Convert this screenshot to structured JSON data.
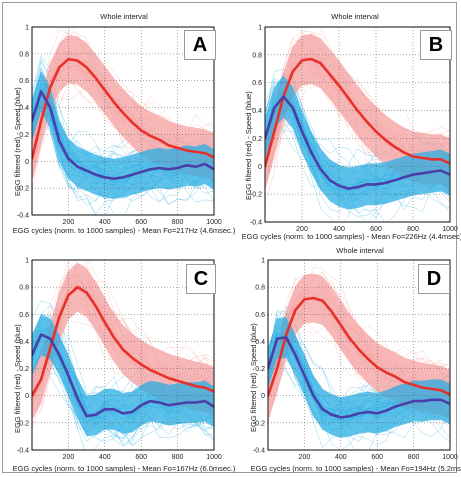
{
  "chart_data": [
    {
      "type": "line",
      "panel_label": "A",
      "title": "Whole interval",
      "xlabel": "EGG cycles (norm. to 1000 samples) - Mean Fo=217Hz (4.6msec.)",
      "ylabel": "EGG filtered (red) - Speed (blue)",
      "xlim": [
        0,
        1000
      ],
      "ylim": [
        -0.4,
        1
      ],
      "xticks": [
        "200",
        "400",
        "600",
        "800",
        "1000"
      ],
      "yticks": [
        "-0.4",
        "-0.2",
        "0",
        "0.2",
        "0.4",
        "0.6",
        "0.8",
        "1"
      ],
      "grid": true,
      "series": [
        {
          "color": "#e8302a",
          "x": [
            0,
            50,
            100,
            150,
            200,
            250,
            300,
            350,
            400,
            450,
            500,
            550,
            600,
            650,
            700,
            750,
            800,
            850,
            900,
            950,
            1000
          ],
          "values": [
            0.02,
            0.3,
            0.55,
            0.7,
            0.76,
            0.75,
            0.7,
            0.62,
            0.53,
            0.44,
            0.36,
            0.29,
            0.23,
            0.19,
            0.16,
            0.12,
            0.1,
            0.08,
            0.07,
            0.06,
            0.03
          ]
        },
        {
          "color": "#4a3fa8",
          "x": [
            0,
            50,
            100,
            150,
            200,
            250,
            300,
            350,
            400,
            450,
            500,
            550,
            600,
            650,
            700,
            750,
            800,
            850,
            900,
            950,
            1000
          ],
          "values": [
            0.3,
            0.52,
            0.4,
            0.15,
            0.02,
            -0.04,
            -0.07,
            -0.1,
            -0.12,
            -0.13,
            -0.12,
            -0.1,
            -0.08,
            -0.06,
            -0.05,
            -0.06,
            -0.05,
            -0.03,
            -0.04,
            -0.02,
            -0.06
          ]
        }
      ]
    },
    {
      "type": "line",
      "panel_label": "B",
      "title": "Whole interval",
      "xlabel": "EGG cycles (norm. to 1000 samples) - Mean Fo=226Hz (4.4msec)",
      "ylabel": "EGG filtered (red) - Speed (blue)",
      "xlim": [
        0,
        1000
      ],
      "ylim": [
        -0.4,
        1
      ],
      "xticks": [
        "200",
        "400",
        "600",
        "800",
        "1000"
      ],
      "yticks": [
        "-0.4",
        "-0.2",
        "0",
        "0.2",
        "0.4",
        "0.6",
        "0.8",
        "1"
      ],
      "grid": true,
      "series": [
        {
          "color": "#e8302a",
          "x": [
            0,
            50,
            100,
            150,
            200,
            250,
            300,
            350,
            400,
            450,
            500,
            550,
            600,
            650,
            700,
            750,
            800,
            850,
            900,
            950,
            1000
          ],
          "values": [
            0.0,
            0.25,
            0.5,
            0.68,
            0.76,
            0.77,
            0.74,
            0.66,
            0.58,
            0.49,
            0.4,
            0.32,
            0.25,
            0.19,
            0.14,
            0.1,
            0.07,
            0.06,
            0.05,
            0.05,
            0.02
          ]
        },
        {
          "color": "#4a3fa8",
          "x": [
            0,
            50,
            100,
            150,
            200,
            250,
            300,
            350,
            400,
            450,
            500,
            550,
            600,
            650,
            700,
            750,
            800,
            850,
            900,
            950,
            1000
          ],
          "values": [
            0.2,
            0.42,
            0.5,
            0.42,
            0.25,
            0.1,
            -0.02,
            -0.1,
            -0.14,
            -0.16,
            -0.15,
            -0.13,
            -0.13,
            -0.12,
            -0.1,
            -0.08,
            -0.06,
            -0.05,
            -0.04,
            -0.03,
            -0.06
          ]
        }
      ]
    },
    {
      "type": "line",
      "panel_label": "C",
      "title": "",
      "xlabel": "EGG cycles (norm. to 1000 samples) - Mean Fo=167Hz (6.0msec.)",
      "ylabel": "EGG filtered (red) - Speed (blue)",
      "xlim": [
        0,
        1000
      ],
      "ylim": [
        -0.4,
        1
      ],
      "xticks": [
        "200",
        "400",
        "600",
        "800",
        "1000"
      ],
      "yticks": [
        "-0.4",
        "-0.2",
        "0",
        "0.2",
        "0.4",
        "0.6",
        "0.8",
        "1"
      ],
      "grid": true,
      "series": [
        {
          "color": "#e8302a",
          "x": [
            0,
            50,
            100,
            150,
            200,
            250,
            300,
            350,
            400,
            450,
            500,
            550,
            600,
            650,
            700,
            750,
            800,
            850,
            900,
            950,
            1000
          ],
          "values": [
            0.0,
            0.12,
            0.35,
            0.58,
            0.74,
            0.8,
            0.76,
            0.66,
            0.54,
            0.43,
            0.34,
            0.28,
            0.23,
            0.19,
            0.16,
            0.13,
            0.11,
            0.09,
            0.07,
            0.06,
            0.03
          ]
        },
        {
          "color": "#4a3fa8",
          "x": [
            0,
            50,
            100,
            150,
            200,
            250,
            300,
            350,
            400,
            450,
            500,
            550,
            600,
            650,
            700,
            750,
            800,
            850,
            900,
            950,
            1000
          ],
          "values": [
            0.3,
            0.45,
            0.42,
            0.3,
            0.15,
            -0.02,
            -0.15,
            -0.14,
            -0.1,
            -0.1,
            -0.13,
            -0.12,
            -0.07,
            -0.04,
            -0.05,
            -0.07,
            -0.06,
            -0.05,
            -0.05,
            -0.04,
            -0.08
          ]
        }
      ]
    },
    {
      "type": "line",
      "panel_label": "D",
      "title": "Whole interval",
      "xlabel": "EGG cycles (norm. to 1000 samples) - Mean Fo=194Hz (5.2msec.)",
      "ylabel": "EGG filtered (red) - Speed (blue)",
      "xlim": [
        0,
        1000
      ],
      "ylim": [
        -0.4,
        1
      ],
      "xticks": [
        "200",
        "400",
        "600",
        "800",
        "1000"
      ],
      "yticks": [
        "-0.4",
        "-0.2",
        "0",
        "0.2",
        "0.4",
        "0.6",
        "0.8",
        "1"
      ],
      "grid": true,
      "series": [
        {
          "color": "#e8302a",
          "x": [
            0,
            50,
            100,
            150,
            200,
            250,
            300,
            350,
            400,
            450,
            500,
            550,
            600,
            650,
            700,
            750,
            800,
            850,
            900,
            950,
            1000
          ],
          "values": [
            0.0,
            0.2,
            0.45,
            0.63,
            0.71,
            0.72,
            0.7,
            0.62,
            0.52,
            0.42,
            0.34,
            0.27,
            0.21,
            0.17,
            0.14,
            0.1,
            0.08,
            0.06,
            0.05,
            0.04,
            0.01
          ]
        },
        {
          "color": "#4a3fa8",
          "x": [
            0,
            50,
            100,
            150,
            200,
            250,
            300,
            350,
            400,
            450,
            500,
            550,
            600,
            650,
            700,
            750,
            800,
            850,
            900,
            950,
            1000
          ],
          "values": [
            0.2,
            0.42,
            0.43,
            0.3,
            0.15,
            0.0,
            -0.1,
            -0.14,
            -0.16,
            -0.15,
            -0.13,
            -0.12,
            -0.13,
            -0.11,
            -0.08,
            -0.06,
            -0.04,
            -0.04,
            -0.03,
            -0.03,
            -0.06
          ]
        }
      ]
    }
  ]
}
